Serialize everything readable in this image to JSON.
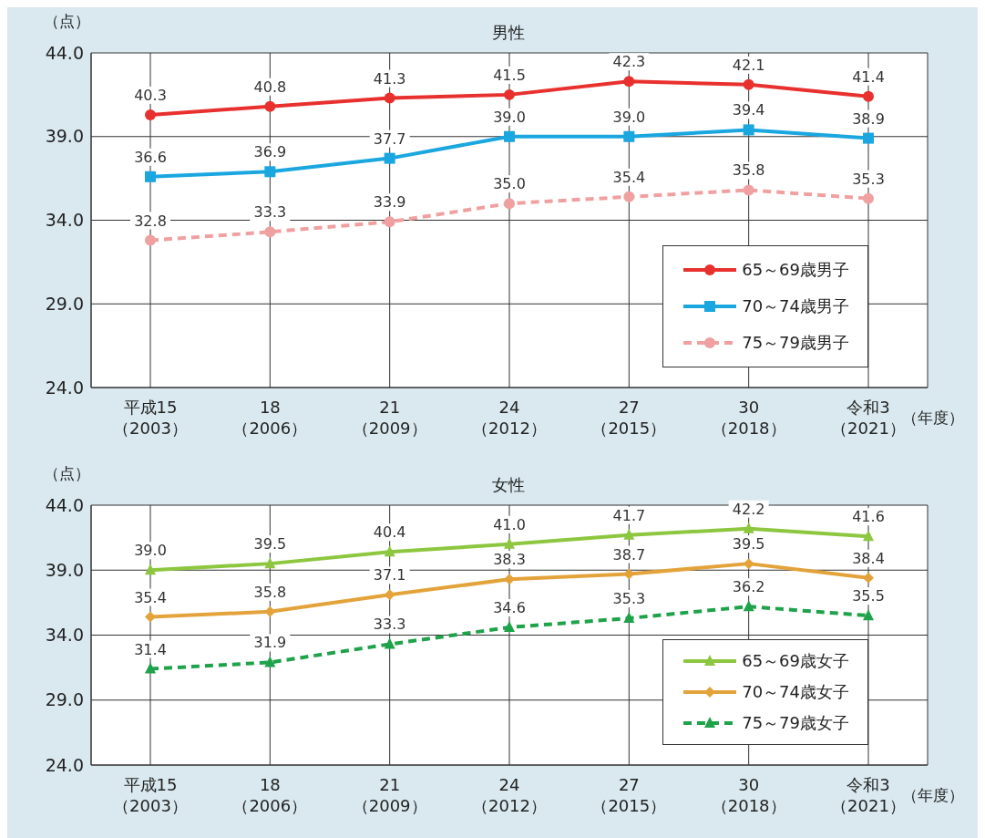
{
  "chart_data": [
    {
      "type": "line",
      "title": "男性",
      "ylabel": "（点）",
      "xlabel": "（年度）",
      "categories": [
        "平成15\n（2003）",
        "18\n（2006）",
        "21\n（2009）",
        "24\n（2012）",
        "27\n（2015）",
        "30\n（2018）",
        "令和3\n（2021）"
      ],
      "ylim": [
        24,
        44
      ],
      "yticks": [
        {
          "value": 24,
          "label": "24.0"
        },
        {
          "value": 29,
          "label": "29.0"
        },
        {
          "value": 34,
          "label": "34.0"
        },
        {
          "value": 39,
          "label": "39.0"
        },
        {
          "value": 44,
          "label": "44.0"
        }
      ],
      "grid": true,
      "legend": "bottom right",
      "series": [
        {
          "name": "65～69歳男子",
          "color": "#e8312f",
          "marker": "circle",
          "line_style": "solid",
          "values": [
            40.3,
            40.8,
            41.3,
            41.5,
            42.3,
            42.1,
            41.4
          ],
          "value_labels": [
            "40.3",
            "40.8",
            "41.3",
            "41.5",
            "42.3",
            "42.1",
            "41.4"
          ]
        },
        {
          "name": "70～74歳男子",
          "color": "#1aa7e0",
          "marker": "square",
          "line_style": "solid",
          "values": [
            36.6,
            36.9,
            37.7,
            39.0,
            39.0,
            39.4,
            38.9
          ],
          "value_labels": [
            "36.6",
            "36.9",
            "37.7",
            "39.0",
            "39.0",
            "39.4",
            "38.9"
          ]
        },
        {
          "name": "75～79歳男子",
          "color": "#f0a0a0",
          "marker": "circle",
          "line_style": "dashed",
          "values": [
            32.8,
            33.3,
            33.9,
            35.0,
            35.4,
            35.8,
            35.3
          ],
          "value_labels": [
            "32.8",
            "33.3",
            "33.9",
            "35.0",
            "35.4",
            "35.8",
            "35.3"
          ]
        }
      ]
    },
    {
      "type": "line",
      "title": "女性",
      "ylabel": "（点）",
      "xlabel": "（年度）",
      "categories": [
        "平成15\n（2003）",
        "18\n（2006）",
        "21\n（2009）",
        "24\n（2012）",
        "27\n（2015）",
        "30\n（2018）",
        "令和3\n（2021）"
      ],
      "ylim": [
        24,
        44
      ],
      "yticks": [
        {
          "value": 24,
          "label": "24.0"
        },
        {
          "value": 29,
          "label": "29.0"
        },
        {
          "value": 34,
          "label": "34.0"
        },
        {
          "value": 39,
          "label": "39.0"
        },
        {
          "value": 44,
          "label": "44.0"
        }
      ],
      "grid": true,
      "legend": "bottom right",
      "series": [
        {
          "name": "65～69歳女子",
          "color": "#8dc63f",
          "marker": "triangle",
          "line_style": "solid",
          "values": [
            39.0,
            39.5,
            40.4,
            41.0,
            41.7,
            42.2,
            41.6
          ],
          "value_labels": [
            "39.0",
            "39.5",
            "40.4",
            "41.0",
            "41.7",
            "42.2",
            "41.6"
          ]
        },
        {
          "name": "70～74歳女子",
          "color": "#e3a33a",
          "marker": "diamond",
          "line_style": "solid",
          "values": [
            35.4,
            35.8,
            37.1,
            38.3,
            38.7,
            39.5,
            38.4
          ],
          "value_labels": [
            "35.4",
            "35.8",
            "37.1",
            "38.3",
            "38.7",
            "39.5",
            "38.4"
          ]
        },
        {
          "name": "75～79歳女子",
          "color": "#1ea24a",
          "marker": "triangle",
          "line_style": "dashed",
          "values": [
            31.4,
            31.9,
            33.3,
            34.6,
            35.3,
            36.2,
            35.5
          ],
          "value_labels": [
            "31.4",
            "31.9",
            "33.3",
            "34.6",
            "35.3",
            "36.2",
            "35.5"
          ]
        }
      ]
    }
  ]
}
